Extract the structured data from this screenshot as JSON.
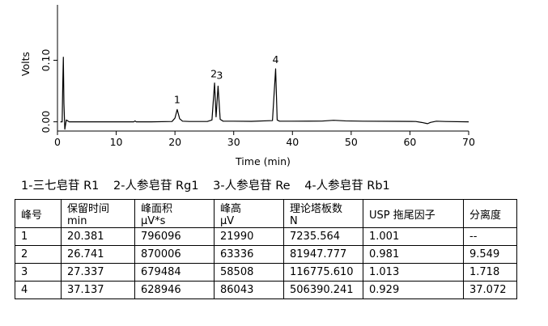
{
  "chart_data": {
    "type": "line",
    "xlabel": "Time (min)",
    "ylabel": "Volts",
    "xlim": [
      0,
      70
    ],
    "ylim": [
      -0.015,
      0.19
    ],
    "x_ticks": [
      "0",
      "10",
      "20",
      "30",
      "40",
      "50",
      "60",
      "70"
    ],
    "y_ticks": [
      "0.00",
      "0.10"
    ],
    "peaks": [
      {
        "label": "1",
        "time": 20.381,
        "height": 0.02
      },
      {
        "label": "2",
        "time": 26.741,
        "height": 0.063
      },
      {
        "label": "3",
        "time": 27.337,
        "height": 0.058
      },
      {
        "label": "4",
        "time": 37.137,
        "height": 0.086
      }
    ],
    "solvent_front": {
      "time": 1.0,
      "height": 0.105
    },
    "series": [
      {
        "x": [
          0.5,
          0.8,
          0.9,
          1.0,
          1.1,
          1.25,
          1.5,
          2.0,
          5.0,
          10.0,
          13.0,
          13.2,
          13.4,
          16.0,
          19.5,
          20.0,
          20.381,
          20.8,
          21.3,
          22.5,
          25.5,
          26.3,
          26.741,
          27.0,
          27.337,
          27.7,
          28.2,
          30.0,
          33.0,
          36.6,
          37.137,
          37.4,
          37.8,
          40.0,
          45.0,
          47.0,
          49.0,
          52.0,
          58.0,
          61.0,
          62.0,
          63.0,
          63.5,
          64.5,
          66.0,
          70.0
        ],
        "y": [
          0.0,
          0.0,
          0.06,
          0.105,
          0.03,
          -0.012,
          0.003,
          0.0,
          0.0,
          0.0,
          0.0,
          0.0015,
          0.0,
          0.0,
          0.0005,
          0.006,
          0.02,
          0.005,
          0.001,
          0.0005,
          0.0005,
          0.003,
          0.063,
          0.008,
          0.058,
          0.004,
          0.001,
          0.001,
          0.0008,
          0.002,
          0.086,
          0.003,
          0.001,
          0.001,
          0.0012,
          0.0025,
          0.0015,
          0.001,
          0.0008,
          0.0005,
          -0.001,
          -0.003,
          -0.001,
          0.001,
          0.0005,
          0.0
        ]
      }
    ]
  },
  "legend": {
    "items": [
      "1-三七皂苷 R1",
      "2-人参皂苷 Rg1",
      "3-人参皂苷 Re",
      "4-人参皂苷 Rb1"
    ]
  },
  "table": {
    "headers": [
      [
        "峰号",
        ""
      ],
      [
        "保留时间",
        "min"
      ],
      [
        "峰面积",
        "μV*s"
      ],
      [
        "峰高",
        "μV"
      ],
      [
        "理论塔板数",
        "N"
      ],
      [
        "USP 拖尾因子",
        ""
      ],
      [
        "分离度",
        ""
      ]
    ],
    "rows": [
      [
        "1",
        "20.381",
        "796096",
        "21990",
        "7235.564",
        "1.001",
        "--"
      ],
      [
        "2",
        "26.741",
        "870006",
        "63336",
        "81947.777",
        "0.981",
        "9.549"
      ],
      [
        "3",
        "27.337",
        "679484",
        "58508",
        "116775.610",
        "1.013",
        "1.718"
      ],
      [
        "4",
        "37.137",
        "628946",
        "86043",
        "506390.241",
        "0.929",
        "37.072"
      ]
    ]
  }
}
